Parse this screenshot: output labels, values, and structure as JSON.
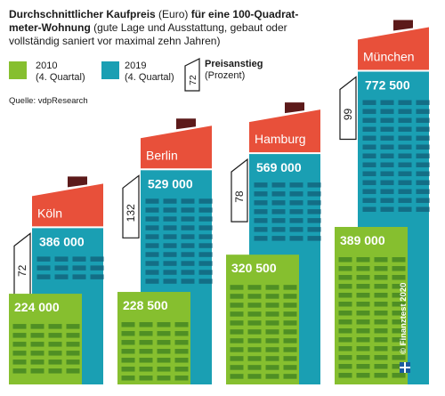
{
  "header": {
    "title_bold_1": "Durchschnittlicher Kaufpreis",
    "title_normal_1": " (Euro) ",
    "title_bold_2": "für eine 100-Quadrat­meter-Wohnung",
    "title_normal_2": " (gute Lage und Ausstattung, gebaut oder vollständig saniert vor maximal zehn Jahren)"
  },
  "legend": {
    "y2010_year": "2010",
    "y2010_sub": "(4. Quartal)",
    "y2019_year": "2019",
    "y2019_sub": "(4. Quartal)",
    "rise_value": "72",
    "rise_title": "Preisanstieg",
    "rise_sub": "(Prozent)"
  },
  "source": "Quelle: vdpResearch",
  "credit": "© Finanztest 2020",
  "colors": {
    "green": "#86bf2f",
    "teal": "#1a9fb3",
    "roof": "#e8503a",
    "chimney": "#5c1a1a",
    "window_green": "#4f8f24",
    "window_teal": "#136e86",
    "window_light": "#8fd1e0"
  },
  "chart_data": {
    "type": "bar",
    "title": "Durchschnittlicher Kaufpreis (Euro) für eine 100-Quadratmeter-Wohnung",
    "categories": [
      "Köln",
      "Berlin",
      "Hamburg",
      "München"
    ],
    "series": [
      {
        "name": "2010 (4. Quartal)",
        "values": [
          224000,
          228500,
          320500,
          389000
        ],
        "labels": [
          "224 000",
          "228 500",
          "320 500",
          "389 000"
        ]
      },
      {
        "name": "2019 (4. Quartal)",
        "values": [
          386000,
          529000,
          569000,
          772500
        ],
        "labels": [
          "386 000",
          "529 000",
          "569 000",
          "772 500"
        ]
      }
    ],
    "price_rise_percent": [
      72,
      132,
      78,
      99
    ],
    "price_rise_labels": [
      "72",
      "132",
      "78",
      "99"
    ],
    "ylim": [
      0,
      772500
    ],
    "grid": false,
    "legend": "top"
  }
}
